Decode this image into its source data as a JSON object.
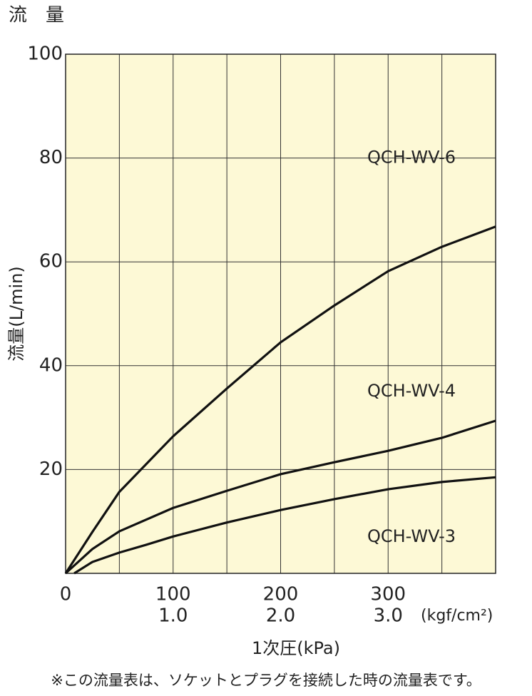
{
  "chart_data": {
    "type": "line",
    "title": "流　量",
    "y_label": "流量(L/min)",
    "x_label": "1次圧(kPa)",
    "note": "※この流量表は、ソケットとプラグを接続した時の流量表です。",
    "xlim": [
      0,
      400
    ],
    "ylim": [
      0,
      100
    ],
    "xticks": [
      0,
      100,
      200,
      300
    ],
    "x2ticks": [
      {
        "value": 100,
        "label": "1.0"
      },
      {
        "value": 200,
        "label": "2.0"
      },
      {
        "value": 300,
        "label": "3.0"
      }
    ],
    "x2_unit": "(kgf/cm²)",
    "x_grid": [
      50,
      100,
      150,
      200,
      250,
      300,
      350
    ],
    "yticks": [
      20,
      40,
      60,
      80,
      100
    ],
    "grid": true,
    "series": [
      {
        "name": "QCH-WV-6",
        "color": "#111111",
        "label_y": 80,
        "x": [
          0,
          25,
          50,
          100,
          150,
          200,
          250,
          300,
          350,
          400
        ],
        "values": [
          0,
          8,
          15.7,
          26.4,
          35.6,
          44.5,
          51.6,
          58.2,
          62.9,
          66.8
        ]
      },
      {
        "name": "QCH-WV-4",
        "color": "#111111",
        "label_y": 35,
        "x": [
          0,
          25,
          50,
          100,
          150,
          200,
          250,
          300,
          350,
          400
        ],
        "values": [
          0,
          4.7,
          8.1,
          12.6,
          15.9,
          19.1,
          21.4,
          23.6,
          26.1,
          29.4
        ]
      },
      {
        "name": "QCH-WV-3",
        "color": "#111111",
        "label_y": 7,
        "x": [
          8,
          25,
          50,
          75,
          100,
          150,
          200,
          250,
          300,
          350,
          400
        ],
        "values": [
          0,
          2.2,
          4,
          5.5,
          7.1,
          9.8,
          12.2,
          14.3,
          16.2,
          17.6,
          18.5
        ]
      }
    ]
  }
}
